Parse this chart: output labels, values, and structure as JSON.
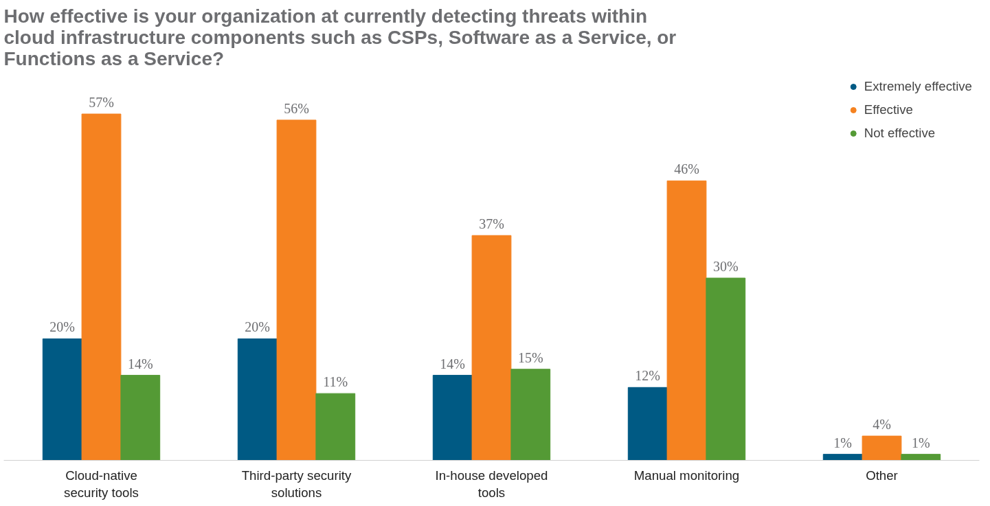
{
  "chart_data": {
    "type": "bar",
    "title": "How effective is your organization at currently detecting threats within cloud infrastructure components such as CSPs, Software as a Service, or Functions as a Service?",
    "categories": [
      "Cloud-native security tools",
      "Third-party security solutions",
      "In-house developed tools",
      "Manual monitoring",
      "Other"
    ],
    "series": [
      {
        "name": "Extremely effective",
        "color": "#005a84",
        "values": [
          20,
          20,
          14,
          12,
          1
        ],
        "value_labels": [
          "20%",
          "20%",
          "14%",
          "12%",
          "1%"
        ]
      },
      {
        "name": "Effective",
        "color": "#f58220",
        "values": [
          57,
          56,
          37,
          46,
          4
        ],
        "value_labels": [
          "57%",
          "56%",
          "37%",
          "46%",
          "4%"
        ]
      },
      {
        "name": "Not effective",
        "color": "#549a35",
        "values": [
          14,
          11,
          15,
          30,
          1
        ],
        "value_labels": [
          "14%",
          "11%",
          "15%",
          "30%",
          "1%"
        ]
      }
    ],
    "legend": "top right",
    "grid": false,
    "marker": "circle"
  }
}
